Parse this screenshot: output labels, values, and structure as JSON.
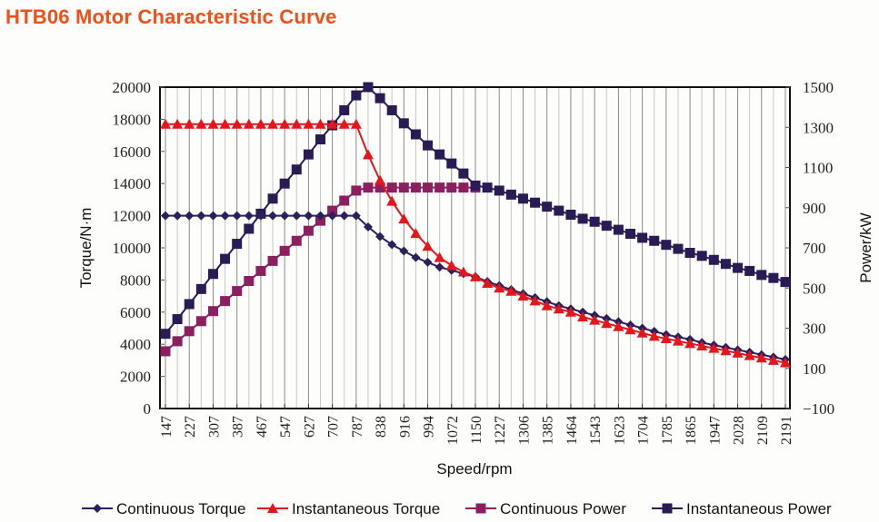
{
  "title": "HTB06 Motor Characteristic Curve",
  "chart_data": {
    "type": "line",
    "title": "HTB06 Motor Characteristic Curve",
    "xlabel": "Speed/rpm",
    "ylabel": "Torque/N·m",
    "y2label": "Power/kW",
    "ylim": [
      0,
      20000
    ],
    "y2lim": [
      -100,
      1500
    ],
    "yticks": [
      0,
      2000,
      4000,
      6000,
      8000,
      10000,
      12000,
      14000,
      16000,
      18000,
      20000
    ],
    "y2ticks": [
      -100,
      100,
      300,
      500,
      700,
      900,
      1100,
      1300,
      1500
    ],
    "grid": "vertical",
    "legend_position": "bottom",
    "x_tick_labels": [
      "147",
      "227",
      "307",
      "387",
      "467",
      "547",
      "627",
      "707",
      "787",
      "838",
      "916",
      "994",
      "1072",
      "1150",
      "1227",
      "1306",
      "1385",
      "1464",
      "1543",
      "1623",
      "1704",
      "1785",
      "1865",
      "1947",
      "2028",
      "2109",
      "2191"
    ],
    "x": [
      147,
      187,
      227,
      267,
      307,
      347,
      387,
      427,
      467,
      507,
      547,
      587,
      627,
      667,
      707,
      747,
      787,
      812,
      838,
      877,
      916,
      955,
      994,
      1033,
      1072,
      1111,
      1150,
      1189,
      1227,
      1267,
      1306,
      1345,
      1385,
      1425,
      1464,
      1504,
      1543,
      1583,
      1623,
      1664,
      1704,
      1745,
      1785,
      1825,
      1865,
      1906,
      1947,
      1988,
      2028,
      2069,
      2109,
      2150,
      2191
    ],
    "series": [
      {
        "name": "Continuous Torque",
        "axis": "left",
        "marker": "diamond",
        "color": "#2b1f5c",
        "values": [
          12000,
          12000,
          12000,
          12000,
          12000,
          12000,
          12000,
          12000,
          12000,
          12000,
          12000,
          12000,
          12000,
          12000,
          12000,
          12000,
          12000,
          11300,
          10700,
          10200,
          9800,
          9400,
          9100,
          8800,
          8600,
          8400,
          8200,
          7900,
          7650,
          7400,
          7150,
          6900,
          6650,
          6400,
          6200,
          6000,
          5800,
          5600,
          5400,
          5200,
          5000,
          4800,
          4600,
          4450,
          4300,
          4100,
          3950,
          3800,
          3650,
          3500,
          3350,
          3200,
          3050
        ]
      },
      {
        "name": "Instantaneous Torque",
        "axis": "left",
        "marker": "triangle",
        "color": "#e5161b",
        "values": [
          17700,
          17700,
          17700,
          17700,
          17700,
          17700,
          17700,
          17700,
          17700,
          17700,
          17700,
          17700,
          17700,
          17700,
          17700,
          17700,
          17700,
          15800,
          14200,
          12900,
          11800,
          10900,
          10100,
          9400,
          8900,
          8500,
          8200,
          7800,
          7500,
          7300,
          7000,
          6700,
          6400,
          6200,
          6000,
          5700,
          5500,
          5300,
          5100,
          4900,
          4700,
          4500,
          4350,
          4200,
          4050,
          3900,
          3750,
          3600,
          3450,
          3300,
          3150,
          3000,
          2850
        ]
      },
      {
        "name": "Continuous Power",
        "axis": "right",
        "marker": "square",
        "color": "#8b1f5f",
        "values": [
          185,
          235,
          285,
          335,
          385,
          435,
          485,
          535,
          585,
          635,
          685,
          735,
          785,
          835,
          885,
          935,
          985,
          1000,
          1000,
          1000,
          1000,
          1000,
          1000,
          1000,
          1000,
          1000,
          1000,
          null,
          null,
          null,
          null,
          null,
          null,
          null,
          null,
          null,
          null,
          null,
          null,
          null,
          null,
          null,
          null,
          null,
          null,
          null,
          null,
          null,
          null,
          null,
          null,
          null,
          null
        ]
      },
      {
        "name": "Instantaneous Power",
        "axis": "right",
        "marker": "square",
        "color": "#2a1b55",
        "values": [
          272,
          345,
          420,
          495,
          570,
          645,
          720,
          795,
          870,
          945,
          1020,
          1090,
          1165,
          1240,
          1310,
          1385,
          1459,
          1500,
          1445,
          1385,
          1320,
          1265,
          1210,
          1165,
          1120,
          1070,
          1010,
          1000,
          985,
          965,
          945,
          925,
          905,
          885,
          865,
          845,
          830,
          810,
          790,
          770,
          750,
          735,
          715,
          695,
          675,
          660,
          640,
          620,
          600,
          585,
          565,
          550,
          530
        ]
      }
    ]
  },
  "legend": [
    {
      "label": "Continuous Torque"
    },
    {
      "label": "Instantaneous Torque"
    },
    {
      "label": "Continuous Power"
    },
    {
      "label": "Instantaneous Power"
    }
  ]
}
